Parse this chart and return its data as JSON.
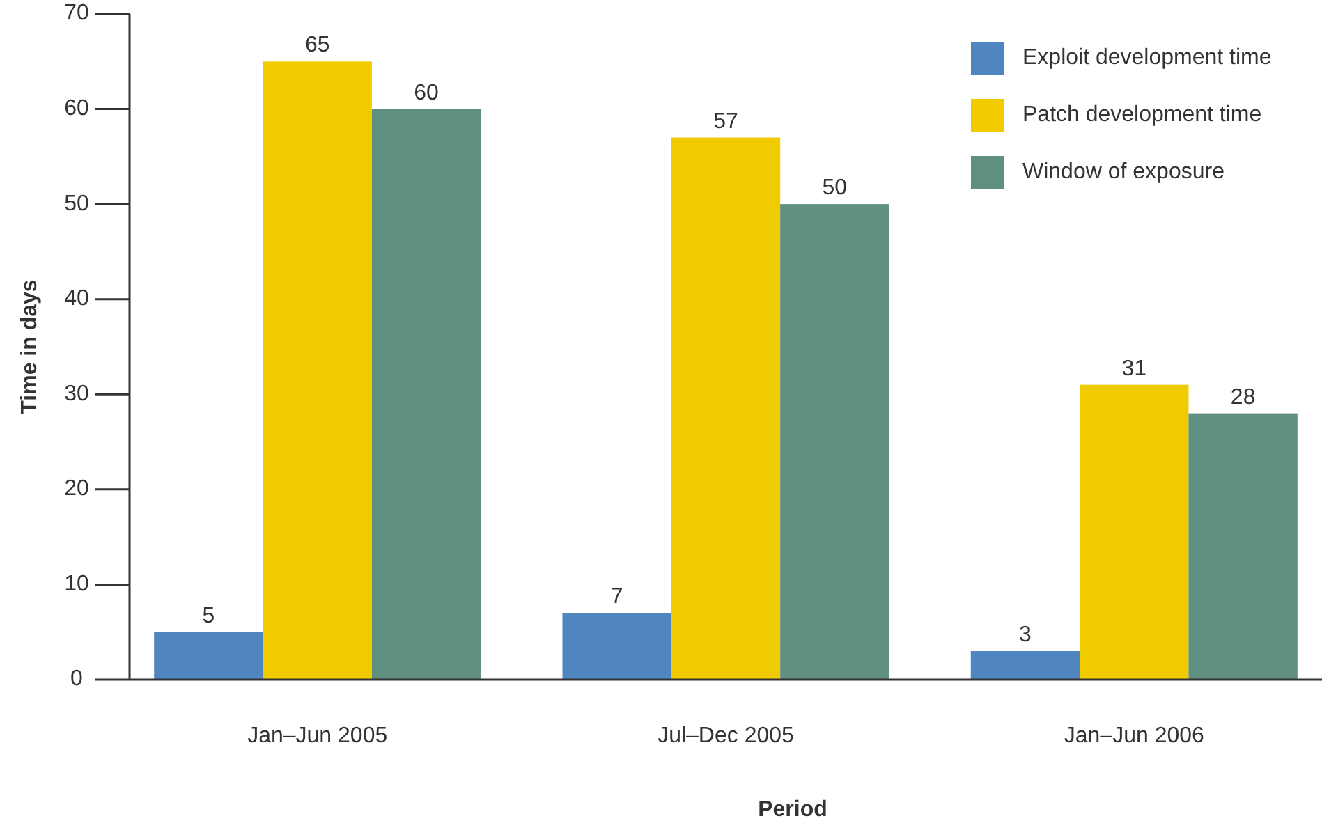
{
  "chart_data": {
    "type": "bar",
    "xlabel": "Period",
    "ylabel": "Time in days",
    "categories": [
      "Jan–Jun 2005",
      "Jul–Dec 2005",
      "Jan–Jun 2006"
    ],
    "series": [
      {
        "name": "Exploit development time",
        "color": "#4f86c0",
        "values": [
          5,
          7,
          3
        ]
      },
      {
        "name": "Patch development time",
        "color": "#f0cb00",
        "values": [
          65,
          57,
          31
        ]
      },
      {
        "name": "Window of exposure",
        "color": "#5f8f7e",
        "values": [
          60,
          50,
          28
        ]
      }
    ],
    "ylim": [
      0,
      70
    ],
    "yticks": [
      0,
      10,
      20,
      30,
      40,
      50,
      60,
      70
    ],
    "grid": false,
    "legend": "top right",
    "data_labels": true
  }
}
